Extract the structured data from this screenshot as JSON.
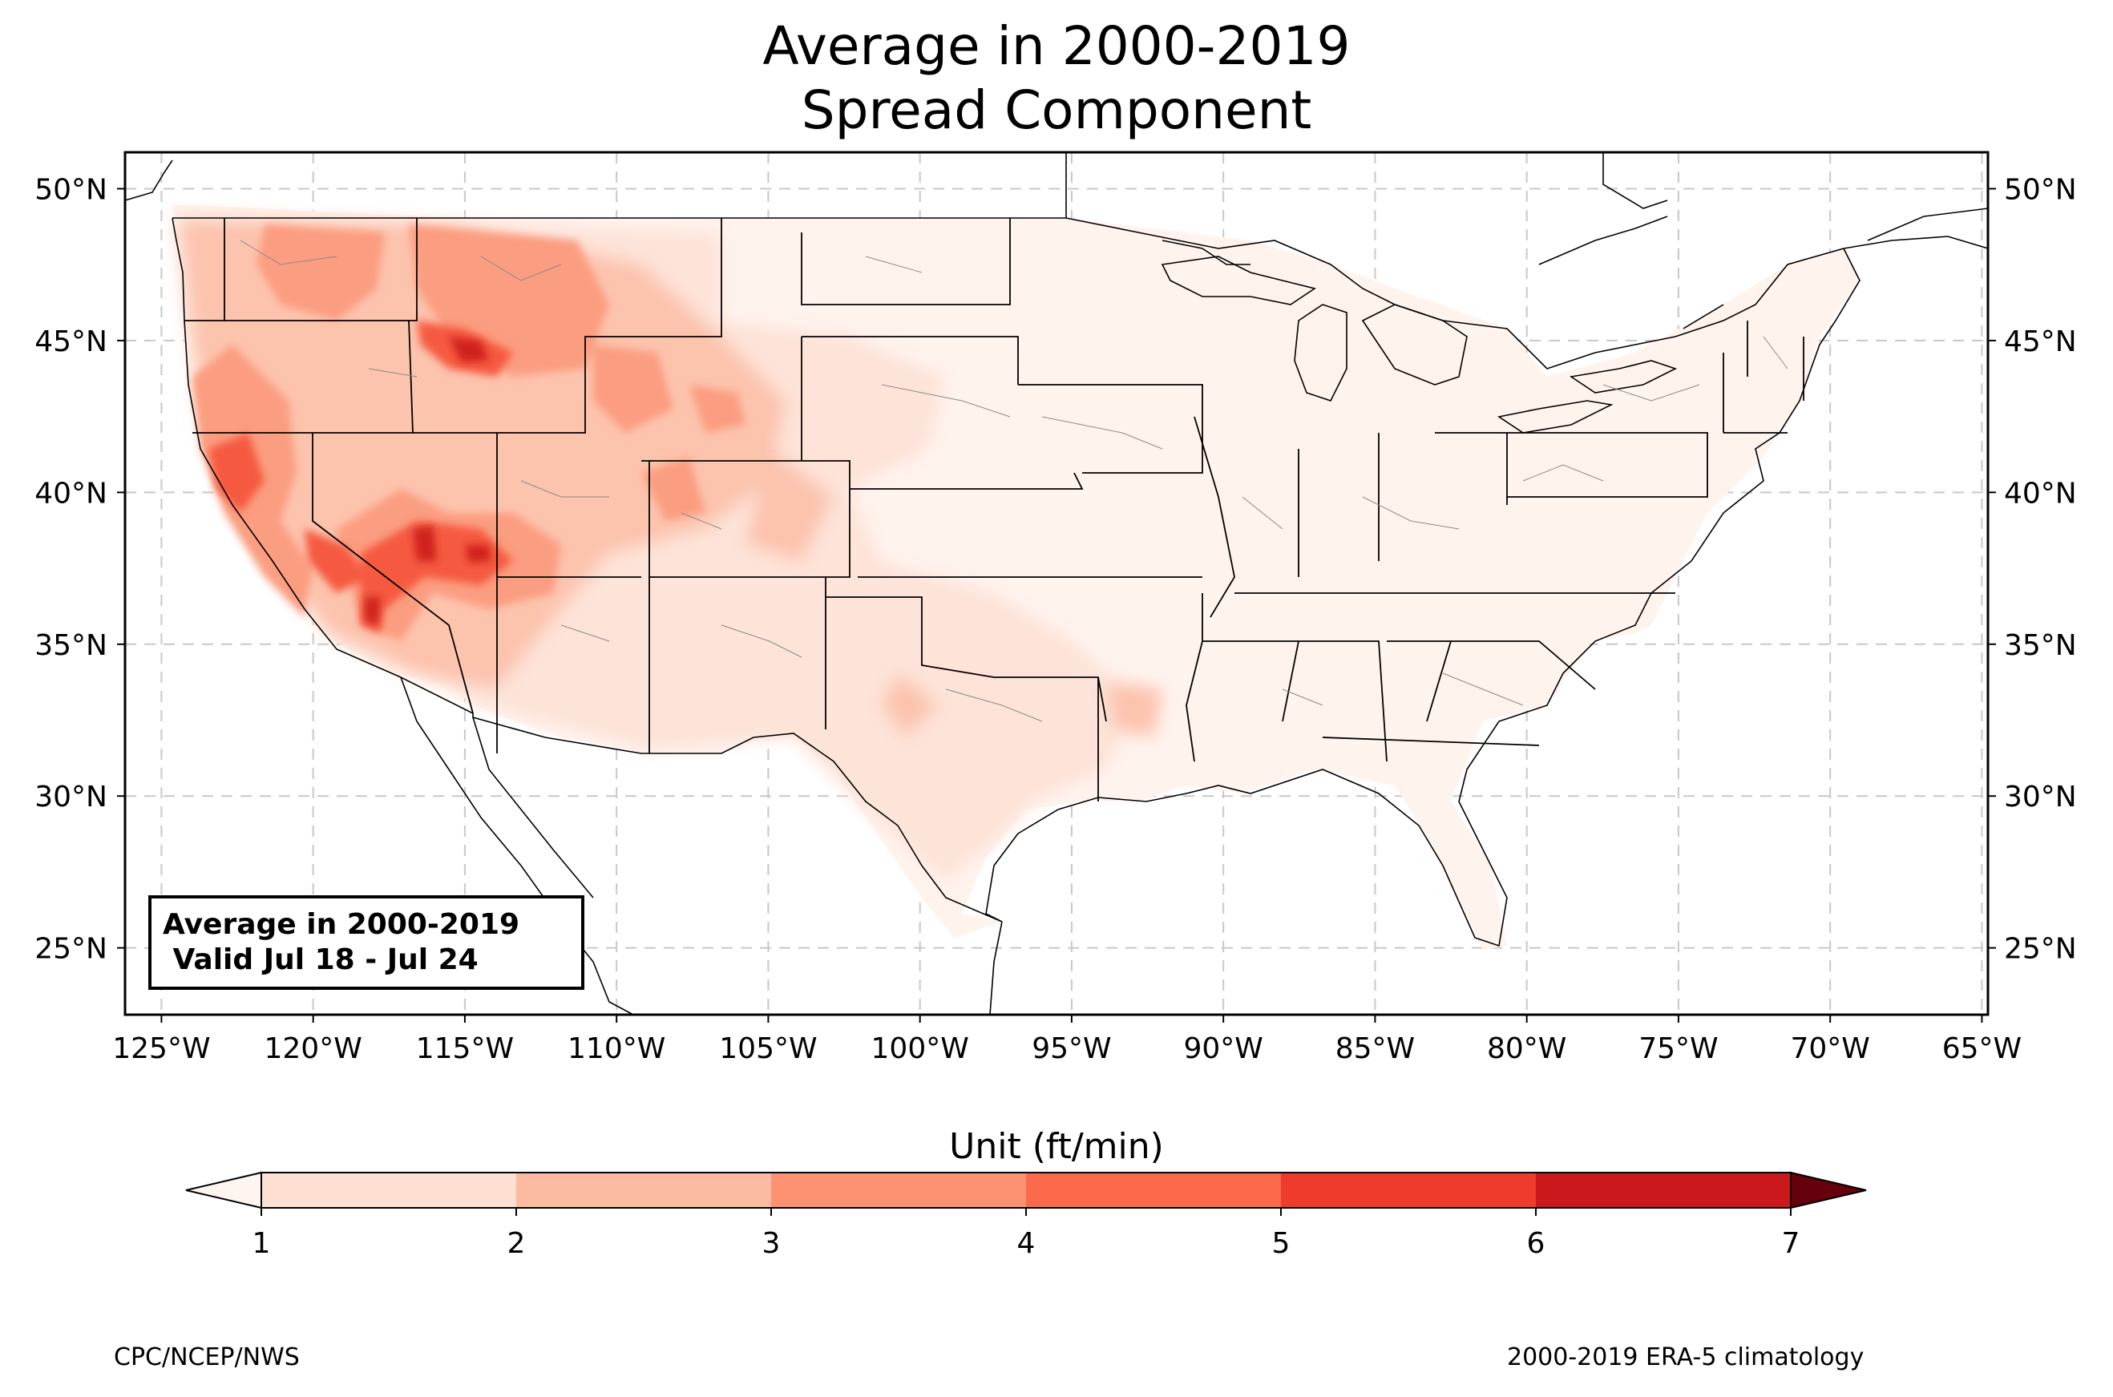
{
  "title": {
    "line1": "Average in 2000-2019",
    "line2": "Spread Component"
  },
  "info_box": {
    "line1": "Average in 2000-2019",
    "line2": " Valid Jul 18 - Jul 24"
  },
  "axes": {
    "lon_ticks": [
      "125°W",
      "120°W",
      "115°W",
      "110°W",
      "105°W",
      "100°W",
      "95°W",
      "90°W",
      "85°W",
      "80°W",
      "75°W",
      "70°W",
      "65°W"
    ],
    "lat_ticks": [
      "50°N",
      "45°N",
      "40°N",
      "35°N",
      "30°N",
      "25°N"
    ],
    "lon_range": [
      -126.2,
      -64.8
    ],
    "lat_range": [
      22.8,
      51.2
    ],
    "grid": "dashed"
  },
  "colorbar": {
    "label": "Unit (ft/min)",
    "ticks": [
      "1",
      "2",
      "3",
      "4",
      "5",
      "6",
      "7"
    ],
    "levels": [
      1,
      2,
      3,
      4,
      5,
      6,
      7
    ],
    "colors": [
      "#fee0d2",
      "#fcbba1",
      "#fc9272",
      "#fb6a4a",
      "#ef3b2c",
      "#cb181d",
      "#a50f15"
    ],
    "under_color": "#fff5f0",
    "over_color": "#67000d",
    "extend": "both"
  },
  "footer": {
    "left": "CPC/NCEP/NWS",
    "right": "2000-2019 ERA-5 climatology"
  }
}
